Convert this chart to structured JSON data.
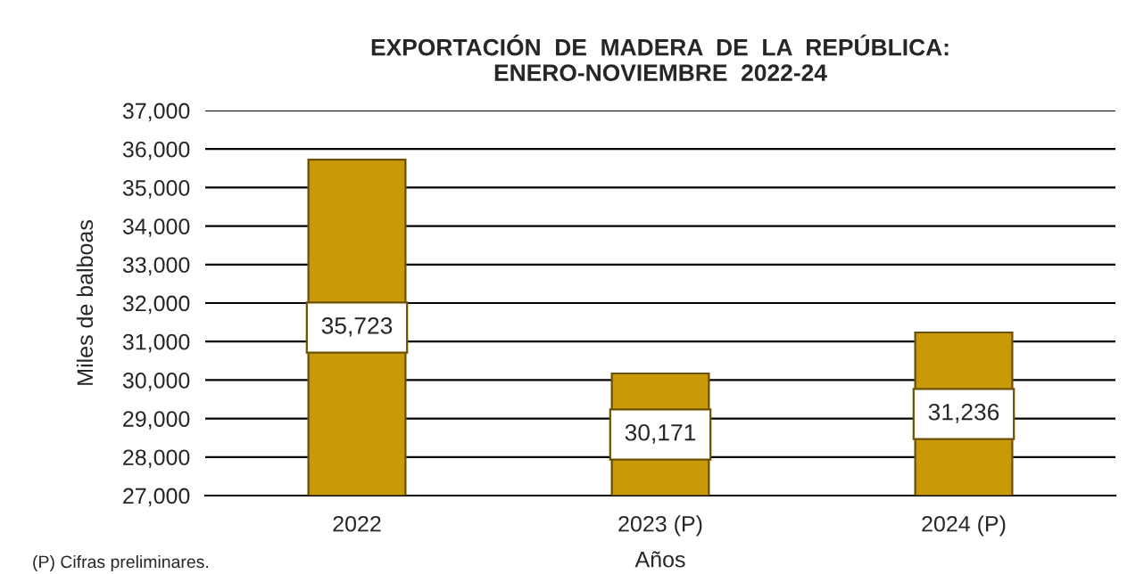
{
  "chart_data": {
    "type": "bar",
    "title": "EXPORTACIÓN  DE  MADERA  DE  LA  REPÚBLICA:\nENERO-NOVIEMBRE  2022-24",
    "xlabel": "Años",
    "ylabel": "Miles de balboas",
    "categories": [
      "2022",
      "2023 (P)",
      "2024 (P)"
    ],
    "values": [
      35723,
      30171,
      31236
    ],
    "value_labels": [
      "35,723",
      "30,171",
      "31,236"
    ],
    "color": "#c89a0a",
    "ylim": [
      27000,
      37000
    ],
    "yticks": [
      {
        "value": 27000,
        "label": "27,000"
      },
      {
        "value": 28000,
        "label": "28,000"
      },
      {
        "value": 29000,
        "label": "29,000"
      },
      {
        "value": 30000,
        "label": "30,000"
      },
      {
        "value": 31000,
        "label": "31,000"
      },
      {
        "value": 32000,
        "label": "32,000"
      },
      {
        "value": 33000,
        "label": "33,000"
      },
      {
        "value": 34000,
        "label": "34,000"
      },
      {
        "value": 35000,
        "label": "35,000"
      },
      {
        "value": 36000,
        "label": "36,000"
      },
      {
        "value": 37000,
        "label": "37,000"
      }
    ],
    "grid": "y",
    "annotations": [
      "(P) Cifras preliminares."
    ]
  }
}
